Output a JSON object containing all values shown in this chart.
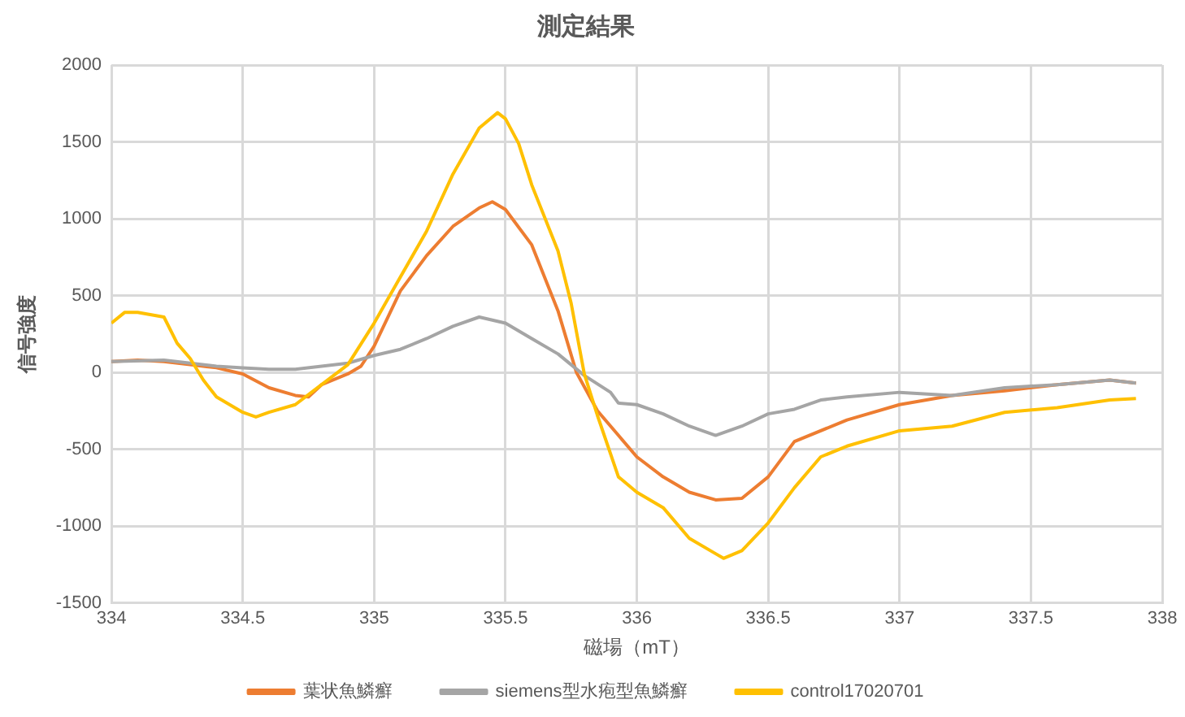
{
  "chart_data": {
    "type": "line",
    "title": "測定結果",
    "xlabel": "磁場（mT）",
    "ylabel": "信号強度",
    "xlim": [
      334,
      338
    ],
    "xticks": [
      334,
      334.5,
      335,
      335.5,
      336,
      336.5,
      337,
      337.5,
      338
    ],
    "ylim": [
      -1500,
      2000
    ],
    "yticks": [
      -1500,
      -1000,
      -500,
      0,
      500,
      1000,
      1500,
      2000
    ],
    "grid": true,
    "legend": "bottom",
    "marker": "none",
    "line_style": "solid",
    "series": [
      {
        "name": "葉状魚鱗癬",
        "color": "#ed7d31",
        "x": [
          334,
          334.1,
          334.2,
          334.3,
          334.4,
          334.5,
          334.6,
          334.7,
          334.75,
          334.8,
          334.9,
          334.95,
          335,
          335.1,
          335.2,
          335.3,
          335.4,
          335.45,
          335.5,
          335.6,
          335.7,
          335.77,
          335.85,
          335.93,
          336,
          336.1,
          336.2,
          336.3,
          336.4,
          336.5,
          336.6,
          336.8,
          337,
          337.2,
          337.4,
          337.6,
          337.8,
          337.9
        ],
        "values": [
          70,
          80,
          70,
          50,
          30,
          -10,
          -100,
          -150,
          -160,
          -80,
          -10,
          40,
          170,
          530,
          760,
          950,
          1070,
          1110,
          1060,
          830,
          400,
          0,
          -250,
          -410,
          -550,
          -680,
          -780,
          -830,
          -820,
          -680,
          -450,
          -310,
          -210,
          -150,
          -120,
          -80,
          -50,
          -70
        ]
      },
      {
        "name": "siemens型水疱型魚鱗癬",
        "color": "#a5a5a5",
        "x": [
          334,
          334.2,
          334.3,
          334.4,
          334.5,
          334.6,
          334.7,
          334.8,
          334.9,
          335,
          335.1,
          335.2,
          335.3,
          335.4,
          335.5,
          335.6,
          335.7,
          335.8,
          335.9,
          335.93,
          336,
          336.1,
          336.2,
          336.3,
          336.4,
          336.5,
          336.6,
          336.7,
          336.8,
          337,
          337.2,
          337.4,
          337.6,
          337.8,
          337.9
        ],
        "values": [
          70,
          80,
          60,
          40,
          30,
          20,
          20,
          40,
          60,
          110,
          150,
          220,
          300,
          360,
          320,
          220,
          120,
          -20,
          -130,
          -200,
          -210,
          -270,
          -350,
          -410,
          -350,
          -270,
          -240,
          -180,
          -160,
          -130,
          -150,
          -100,
          -80,
          -50,
          -70
        ]
      },
      {
        "name": "control17020701",
        "color": "#ffc000",
        "x": [
          334,
          334.05,
          334.1,
          334.2,
          334.25,
          334.3,
          334.35,
          334.4,
          334.5,
          334.55,
          334.6,
          334.7,
          334.8,
          334.9,
          335,
          335.1,
          335.2,
          335.3,
          335.4,
          335.47,
          335.5,
          335.55,
          335.6,
          335.7,
          335.75,
          335.8,
          335.85,
          335.93,
          336,
          336.1,
          336.2,
          336.3,
          336.33,
          336.4,
          336.5,
          336.6,
          336.7,
          336.8,
          337,
          337.2,
          337.4,
          337.6,
          337.8,
          337.9
        ],
        "values": [
          320,
          390,
          390,
          360,
          190,
          90,
          -50,
          -160,
          -260,
          -290,
          -260,
          -210,
          -80,
          50,
          320,
          620,
          920,
          1290,
          1590,
          1690,
          1650,
          1490,
          1220,
          790,
          450,
          -10,
          -280,
          -680,
          -780,
          -880,
          -1080,
          -1180,
          -1210,
          -1160,
          -980,
          -750,
          -550,
          -480,
          -380,
          -350,
          -260,
          -230,
          -180,
          -170
        ]
      }
    ]
  }
}
